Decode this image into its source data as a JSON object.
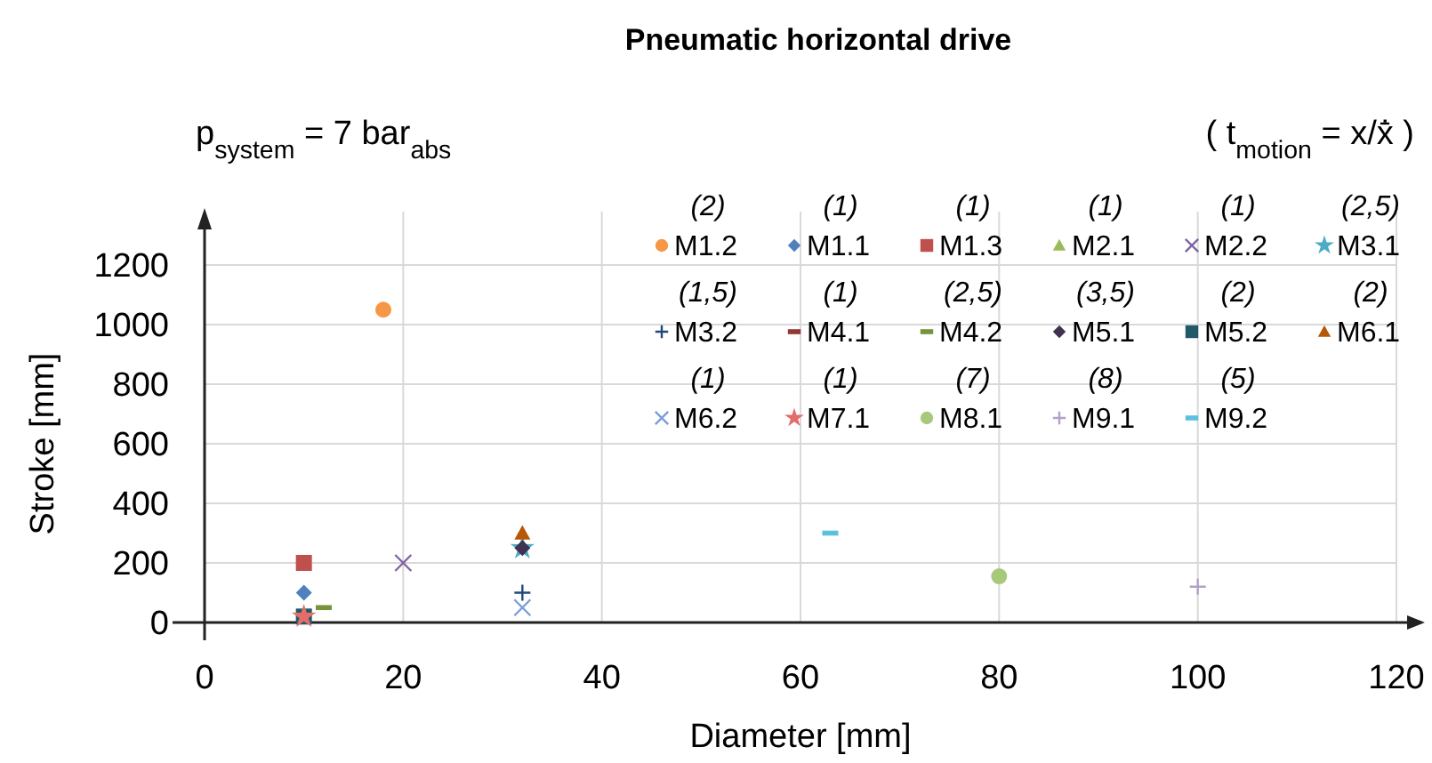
{
  "chart_data": {
    "type": "scatter",
    "title": "Pneumatic horizontal drive",
    "xlabel": "Diameter [mm]",
    "ylabel": "Stroke [mm]",
    "xlim": [
      0,
      120
    ],
    "xticks": [
      0,
      20,
      40,
      60,
      80,
      100,
      120
    ],
    "ylim": [
      0,
      1200
    ],
    "yticks": [
      0,
      200,
      400,
      600,
      800,
      1000,
      1200
    ],
    "grid": true,
    "legend": "top right",
    "annotations": [
      "p$_{system}$ = 7 bar$_{abs}$",
      "( t$_{motion}$ = x/ẋ̄ )",
      "(2)",
      "(1)",
      "(1)",
      "(1)",
      "(1)",
      "(2,5)",
      "(1,5)",
      "(1)",
      "(2,5)",
      "(3,5)",
      "(2)",
      "(2)",
      "(1)",
      "(1)",
      "(7)",
      "(8)",
      "(5)"
    ],
    "series": [
      {
        "name": "M1.2",
        "color": "#f79646",
        "marker": "circle",
        "x": [
          18
        ],
        "values": [
          1050
        ]
      },
      {
        "name": "M1.1",
        "color": "#4f81bd",
        "marker": "diamond",
        "x": [
          10
        ],
        "values": [
          100
        ]
      },
      {
        "name": "M1.3",
        "color": "#c0504d",
        "marker": "square",
        "x": [
          10
        ],
        "values": [
          200
        ]
      },
      {
        "name": "M2.1",
        "color": "#9bbb59",
        "marker": "triangle",
        "x": [
          null
        ],
        "values": [
          null
        ]
      },
      {
        "name": "M2.2",
        "color": "#8064a2",
        "marker": "cross",
        "x": [
          20
        ],
        "values": [
          200
        ]
      },
      {
        "name": "M3.1",
        "color": "#4bacc6",
        "marker": "star",
        "x": [
          32
        ],
        "values": [
          250
        ]
      },
      {
        "name": "M3.2",
        "color": "#1f497d",
        "marker": "plus",
        "x": [
          32
        ],
        "values": [
          100
        ]
      },
      {
        "name": "M4.1",
        "color": "#943634",
        "x": [
          null
        ],
        "values": [
          null
        ]
      },
      {
        "name": "M4.2",
        "color": "#77933c",
        "x": [
          12
        ],
        "values": [
          50
        ]
      },
      {
        "name": "M5.1",
        "color": "#403151",
        "marker": "diamond",
        "x": [
          32
        ],
        "values": [
          250
        ]
      },
      {
        "name": "M5.2",
        "color": "#215968",
        "marker": "square",
        "x": [
          10
        ],
        "values": [
          20
        ]
      },
      {
        "name": "M6.1",
        "color": "#b65708",
        "marker": "triangle",
        "x": [
          32
        ],
        "values": [
          300
        ]
      },
      {
        "name": "M6.2",
        "color": "#7a9fd6",
        "marker": "cross",
        "x": [
          32
        ],
        "values": [
          50
        ]
      },
      {
        "name": "M7.1",
        "color": "#e46c6a",
        "marker": "star",
        "x": [
          10
        ],
        "values": [
          20
        ]
      },
      {
        "name": "M8.1",
        "color": "#a9c97a",
        "marker": "circle",
        "x": [
          80
        ],
        "values": [
          155
        ]
      },
      {
        "name": "M9.1",
        "color": "#b3a2c7",
        "marker": "plus",
        "x": [
          100
        ],
        "values": [
          120
        ]
      },
      {
        "name": "M9.2",
        "color": "#5bc0de",
        "x": [
          63
        ],
        "values": [
          300
        ]
      }
    ]
  }
}
